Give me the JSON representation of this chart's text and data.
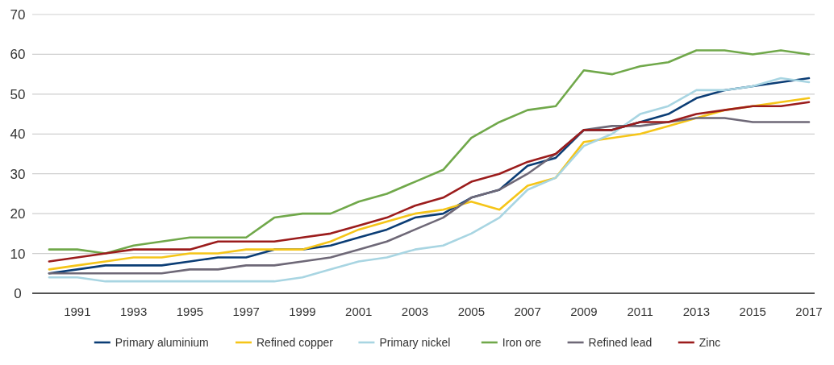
{
  "chart_data": {
    "type": "line",
    "x": [
      1990,
      1991,
      1992,
      1993,
      1994,
      1995,
      1996,
      1997,
      1998,
      1999,
      2000,
      2001,
      2002,
      2003,
      2004,
      2005,
      2006,
      2007,
      2008,
      2009,
      2010,
      2011,
      2012,
      2013,
      2014,
      2015,
      2016,
      2017
    ],
    "xlim": [
      1989.4,
      2017.2
    ],
    "xticks": [
      1991,
      1993,
      1995,
      1997,
      1999,
      2001,
      2003,
      2005,
      2007,
      2009,
      2011,
      2013,
      2015,
      2017
    ],
    "ylim": [
      0,
      70
    ],
    "yticks": [
      0,
      10,
      20,
      30,
      40,
      50,
      60,
      70
    ],
    "grid": "y",
    "legend": "bottom",
    "marker": "none",
    "line_style": "solid",
    "series": [
      {
        "name": "Primary aluminium",
        "color": "#0b3d75",
        "values": [
          5,
          6,
          7,
          7,
          7,
          8,
          9,
          9,
          11,
          11,
          12,
          14,
          16,
          19,
          20,
          24,
          26,
          32,
          34,
          41,
          41,
          43,
          45,
          49,
          51,
          52,
          53,
          54
        ]
      },
      {
        "name": "Refined copper",
        "color": "#f5c518",
        "values": [
          6,
          7,
          8,
          9,
          9,
          10,
          10,
          11,
          11,
          11,
          13,
          16,
          18,
          20,
          21,
          23,
          21,
          27,
          29,
          38,
          39,
          40,
          42,
          44,
          46,
          47,
          48,
          49
        ]
      },
      {
        "name": "Primary nickel",
        "color": "#a8d5e2",
        "values": [
          4,
          4,
          3,
          3,
          3,
          3,
          3,
          3,
          3,
          4,
          6,
          8,
          9,
          11,
          12,
          15,
          19,
          26,
          29,
          37,
          40,
          45,
          47,
          51,
          51,
          52,
          54,
          53
        ]
      },
      {
        "name": "Iron ore",
        "color": "#70a84a",
        "values": [
          11,
          11,
          10,
          12,
          13,
          14,
          14,
          14,
          19,
          20,
          20,
          23,
          25,
          28,
          31,
          39,
          43,
          46,
          47,
          56,
          55,
          57,
          58,
          61,
          61,
          60,
          61,
          60
        ]
      },
      {
        "name": "Refined lead",
        "color": "#6e6877",
        "values": [
          5,
          5,
          5,
          5,
          5,
          6,
          6,
          7,
          7,
          8,
          9,
          11,
          13,
          16,
          19,
          24,
          26,
          30,
          35,
          41,
          42,
          42,
          43,
          44,
          44,
          43,
          43,
          43
        ]
      },
      {
        "name": "Zinc",
        "color": "#9b1c1c",
        "values": [
          8,
          9,
          10,
          11,
          11,
          11,
          13,
          13,
          13,
          14,
          15,
          17,
          19,
          22,
          24,
          28,
          30,
          33,
          35,
          41,
          41,
          43,
          43,
          45,
          46,
          47,
          47,
          48
        ]
      }
    ]
  }
}
